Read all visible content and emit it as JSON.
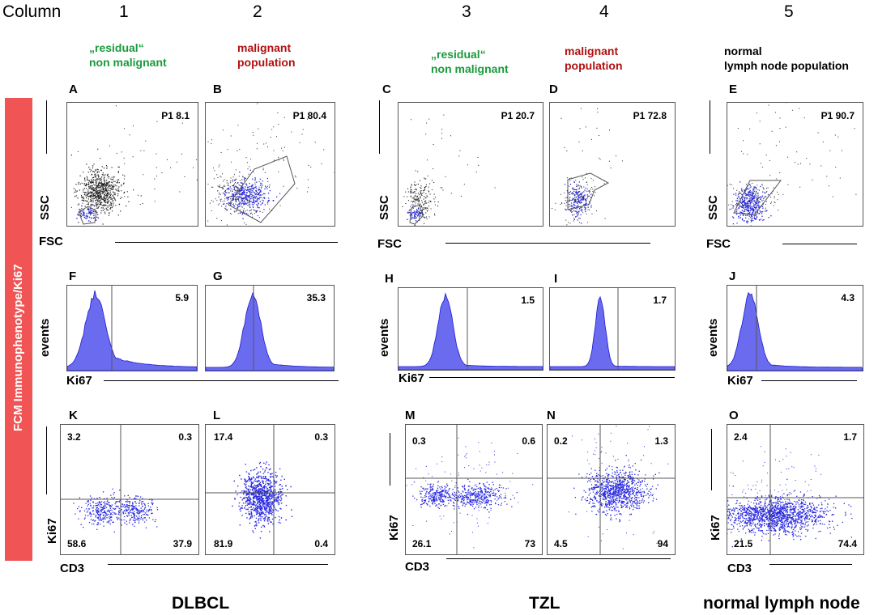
{
  "header": {
    "column_label": "Column",
    "columns": [
      "1",
      "2",
      "3",
      "4",
      "5"
    ]
  },
  "populations": {
    "c1": [
      "„residual“",
      "non malignant"
    ],
    "c2": [
      "malignant",
      "population"
    ],
    "c3": [
      "„residual“",
      "non malignant"
    ],
    "c4": [
      "malignant",
      "population"
    ],
    "c5": [
      "normal",
      "lymph node population"
    ]
  },
  "colors": {
    "green": "#1a9a3c",
    "red": "#b01010",
    "dots_black": "#222222",
    "dots_blue": "#2a2ae0",
    "sidebar": "#f05454"
  },
  "sidebar_label": "FCM Immunophenotype/Ki67",
  "axes": {
    "ssc": "SSC",
    "fsc": "FSC",
    "events": "events",
    "ki67": "Ki67",
    "cd3": "CD3"
  },
  "panels": {
    "A": {
      "letter": "A",
      "value": "P1 8.1"
    },
    "B": {
      "letter": "B",
      "value": "P1 80.4"
    },
    "C": {
      "letter": "C",
      "value": "P1 20.7"
    },
    "D": {
      "letter": "D",
      "value": "P1 72.8"
    },
    "E": {
      "letter": "E",
      "value": "P1 90.7"
    },
    "F": {
      "letter": "F",
      "value": "5.9"
    },
    "G": {
      "letter": "G",
      "value": "35.3"
    },
    "H": {
      "letter": "H",
      "value": "1.5"
    },
    "I": {
      "letter": "I",
      "value": "1.7"
    },
    "J": {
      "letter": "J",
      "value": "4.3"
    },
    "K": {
      "letter": "K",
      "q": [
        "3.2",
        "0.3",
        "58.6",
        "37.9"
      ]
    },
    "L": {
      "letter": "L",
      "q": [
        "17.4",
        "0.3",
        "81.9",
        "0.4"
      ]
    },
    "M": {
      "letter": "M",
      "q": [
        "0.3",
        "0.6",
        "26.1",
        "73"
      ]
    },
    "N": {
      "letter": "N",
      "q": [
        "0.2",
        "1.3",
        "4.5",
        "94"
      ]
    },
    "O": {
      "letter": "O",
      "q": [
        "2.4",
        "1.7",
        "21.5",
        "74.4"
      ]
    }
  },
  "footer": {
    "dlbcl": "DLBCL",
    "tzl": "TZL",
    "normal": "normal lymph node"
  }
}
